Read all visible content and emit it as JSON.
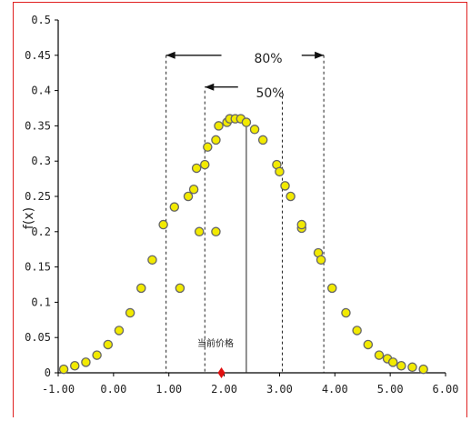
{
  "chart_data": {
    "type": "scatter",
    "xlabel": "",
    "ylabel": "f(x)",
    "xlim": [
      -1.0,
      6.0
    ],
    "ylim": [
      0,
      0.5
    ],
    "x_ticks": [
      "-1.00",
      "0.00",
      "1.00",
      "2.00",
      "3.00",
      "4.00",
      "5.00",
      "6.00"
    ],
    "y_ticks": [
      "0",
      "0.05",
      "0.1",
      "0.15",
      "0.2",
      "0.25",
      "0.3",
      "0.35",
      "0.4",
      "0.45",
      "0.5"
    ],
    "grid": false,
    "marker_color": "#f2ea00",
    "marker_edge": "#666666",
    "series": [
      {
        "x": [
          -0.9,
          -0.7,
          -0.5,
          -0.3,
          -0.1,
          0.1,
          0.3,
          0.5,
          0.7,
          0.9,
          1.1,
          1.35,
          1.45,
          1.5,
          1.65,
          1.7,
          1.85,
          1.9,
          2.05,
          2.1,
          2.2,
          2.3,
          2.4,
          2.55,
          2.7,
          2.95,
          3.0,
          3.1,
          3.2,
          3.4,
          3.7,
          3.75,
          3.95,
          4.2,
          4.4,
          4.6,
          4.8,
          4.95,
          5.05,
          5.2,
          5.4,
          5.6
        ],
        "y": [
          0.005,
          0.01,
          0.015,
          0.025,
          0.04,
          0.06,
          0.085,
          0.12,
          0.16,
          0.21,
          0.235,
          0.25,
          0.26,
          0.29,
          0.295,
          0.32,
          0.33,
          0.35,
          0.355,
          0.36,
          0.36,
          0.36,
          0.355,
          0.345,
          0.33,
          0.295,
          0.285,
          0.265,
          0.25,
          0.205,
          0.17,
          0.16,
          0.12,
          0.085,
          0.06,
          0.04,
          0.025,
          0.02,
          0.015,
          0.01,
          0.008,
          0.005
        ]
      }
    ],
    "vlines": [
      {
        "x": 0.95,
        "y": 0.45,
        "style": "dashed"
      },
      {
        "x": 1.65,
        "y": 0.4,
        "style": "dashed"
      },
      {
        "x": 2.4,
        "y": 0.36,
        "style": "solid"
      },
      {
        "x": 3.05,
        "y": 0.4,
        "style": "dashed"
      },
      {
        "x": 3.8,
        "y": 0.45,
        "style": "dashed"
      }
    ],
    "annotations": {
      "range80_label": "80%",
      "range50_label": "50%",
      "center_label": "当前价格",
      "extra_x": [
        1.2,
        1.55,
        1.85,
        3.4
      ],
      "extra_y": [
        0.12,
        0.2,
        0.2,
        0.21
      ],
      "red_marker_x": 1.95
    }
  }
}
